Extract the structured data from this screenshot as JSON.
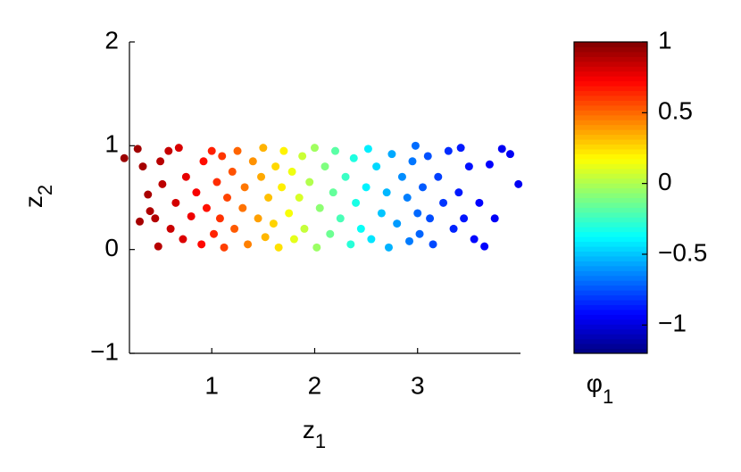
{
  "chart_data": {
    "type": "scatter",
    "xlabel": "z",
    "xlabel_sub": "1",
    "ylabel": "z",
    "ylabel_sub": "2",
    "colorbar_label": "φ",
    "colorbar_label_sub": "1",
    "xlim": [
      0.2,
      4
    ],
    "ylim": [
      -1,
      2
    ],
    "xticks": [
      1,
      2,
      3
    ],
    "yticks": [
      {
        "value": -1,
        "label": "−1"
      },
      0,
      1,
      2
    ],
    "clim": [
      -1.2,
      1
    ],
    "cticks": [
      {
        "value": -1,
        "label": "−1"
      },
      {
        "value": -0.5,
        "label": "−0.5"
      },
      0,
      0.5,
      1
    ],
    "colormap": "jet",
    "x": [
      0.15,
      0.28,
      0.3,
      0.33,
      0.38,
      0.4,
      0.45,
      0.48,
      0.5,
      0.52,
      0.58,
      0.6,
      0.65,
      0.68,
      0.72,
      0.75,
      0.8,
      0.85,
      0.9,
      0.92,
      0.95,
      1.0,
      1.02,
      1.05,
      1.08,
      1.1,
      1.12,
      1.15,
      1.2,
      1.22,
      1.25,
      1.3,
      1.32,
      1.35,
      1.4,
      1.45,
      1.48,
      1.5,
      1.52,
      1.55,
      1.6,
      1.62,
      1.65,
      1.68,
      1.7,
      1.75,
      1.78,
      1.8,
      1.85,
      1.88,
      1.9,
      1.95,
      2.0,
      2.02,
      2.05,
      2.1,
      2.15,
      2.18,
      2.2,
      2.25,
      2.3,
      2.35,
      2.38,
      2.4,
      2.45,
      2.5,
      2.52,
      2.55,
      2.6,
      2.65,
      2.7,
      2.72,
      2.75,
      2.8,
      2.85,
      2.9,
      2.92,
      2.95,
      2.98,
      3.0,
      3.02,
      3.05,
      3.1,
      3.12,
      3.15,
      3.2,
      3.25,
      3.3,
      3.35,
      3.4,
      3.42,
      3.45,
      3.5,
      3.55,
      3.6,
      3.65,
      3.7,
      3.75,
      3.82,
      3.9,
      3.98
    ],
    "y": [
      0.88,
      0.97,
      0.27,
      0.8,
      0.53,
      0.37,
      0.3,
      0.03,
      0.85,
      0.63,
      0.95,
      0.2,
      0.45,
      0.98,
      0.1,
      0.7,
      0.32,
      0.55,
      0.05,
      0.85,
      0.4,
      0.95,
      0.15,
      0.65,
      0.3,
      0.9,
      0.02,
      0.5,
      0.75,
      0.2,
      0.95,
      0.4,
      0.6,
      0.05,
      0.85,
      0.3,
      0.7,
      0.98,
      0.12,
      0.5,
      0.25,
      0.8,
      0.02,
      0.6,
      0.95,
      0.35,
      0.75,
      0.1,
      0.5,
      0.9,
      0.2,
      0.65,
      0.98,
      0.02,
      0.4,
      0.8,
      0.15,
      0.55,
      0.95,
      0.3,
      0.7,
      0.05,
      0.88,
      0.45,
      0.2,
      0.6,
      0.97,
      0.1,
      0.8,
      0.35,
      0.55,
      0.02,
      0.92,
      0.25,
      0.7,
      0.5,
      0.08,
      0.85,
      1.0,
      0.35,
      0.15,
      0.6,
      0.9,
      0.3,
      0.05,
      0.7,
      0.45,
      0.95,
      0.2,
      0.55,
      0.98,
      0.3,
      0.8,
      0.1,
      0.45,
      0.03,
      0.82,
      0.3,
      0.97,
      0.92,
      0.63
    ],
    "phi": [
      0.94,
      0.93,
      0.92,
      0.92,
      0.91,
      0.9,
      0.89,
      0.88,
      0.88,
      0.87,
      0.85,
      0.84,
      0.82,
      0.81,
      0.8,
      0.78,
      0.76,
      0.74,
      0.71,
      0.7,
      0.69,
      0.66,
      0.65,
      0.63,
      0.62,
      0.61,
      0.59,
      0.58,
      0.55,
      0.53,
      0.51,
      0.48,
      0.47,
      0.45,
      0.41,
      0.38,
      0.36,
      0.34,
      0.33,
      0.31,
      0.27,
      0.26,
      0.24,
      0.21,
      0.2,
      0.16,
      0.14,
      0.12,
      0.09,
      0.06,
      0.05,
      0.01,
      -0.03,
      -0.04,
      -0.07,
      -0.1,
      -0.14,
      -0.16,
      -0.18,
      -0.22,
      -0.25,
      -0.29,
      -0.31,
      -0.32,
      -0.36,
      -0.4,
      -0.41,
      -0.43,
      -0.46,
      -0.5,
      -0.53,
      -0.54,
      -0.56,
      -0.59,
      -0.62,
      -0.65,
      -0.66,
      -0.67,
      -0.69,
      -0.7,
      -0.71,
      -0.73,
      -0.75,
      -0.76,
      -0.77,
      -0.79,
      -0.81,
      -0.83,
      -0.85,
      -0.87,
      -0.87,
      -0.88,
      -0.89,
      -0.91,
      -0.92,
      -0.93,
      -0.93,
      -0.94,
      -0.95,
      -0.95,
      -0.95
    ]
  }
}
